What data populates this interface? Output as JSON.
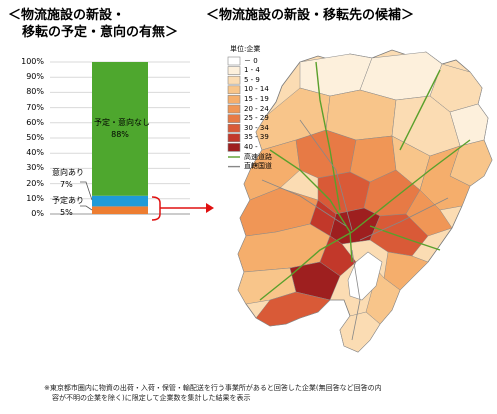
{
  "left_title": {
    "line1": "＜物流施設の新設・",
    "line2": "移転の予定・意向の有無＞"
  },
  "right_title": "＜物流施設の新設・移転先の候補＞",
  "chart_data": {
    "type": "bar",
    "stacked": true,
    "ylim": [
      0,
      100
    ],
    "y_ticks": [
      "0%",
      "10%",
      "20%",
      "30%",
      "40%",
      "50%",
      "60%",
      "70%",
      "80%",
      "90%",
      "100%"
    ],
    "grid": true,
    "series": [
      {
        "name": "予定あり",
        "value_label": "5%",
        "value": 5,
        "color": "#ed7d31"
      },
      {
        "name": "意向あり",
        "value_label": "7%",
        "value": 7,
        "color": "#1f9bd7"
      },
      {
        "name": "予定・意向なし",
        "value_label": "88%",
        "value": 88,
        "color": "#4ea72e"
      }
    ]
  },
  "map_legend": {
    "unit": "単位:企業",
    "bins": [
      {
        "label": "0",
        "color": "#ffffff"
      },
      {
        "label": "1 - 4",
        "color": "#fdf0dc"
      },
      {
        "label": "5 - 9",
        "color": "#fbdcb3"
      },
      {
        "label": "10 - 14",
        "color": "#f8c58a"
      },
      {
        "label": "15 - 19",
        "color": "#f5ae6c"
      },
      {
        "label": "20 - 24",
        "color": "#f09656"
      },
      {
        "label": "25 - 29",
        "color": "#e77a45"
      },
      {
        "label": "30 - 34",
        "color": "#d95a37"
      },
      {
        "label": "35 - 39",
        "color": "#c2382a"
      },
      {
        "label": "40 -",
        "color": "#9e1f1f"
      }
    ],
    "lines": [
      {
        "label": "高速道路",
        "color": "#5aa02c"
      },
      {
        "label": "直轄国道",
        "color": "#888888"
      }
    ]
  },
  "footnote": {
    "line1": "※東京都市圏内に物資の出荷・入荷・保管・輸配送を行う事業所があると回答した企業(無回答など回答の内",
    "line2": "容が不明の企業を除く)に限定して企業数を集計した結果を表示"
  }
}
